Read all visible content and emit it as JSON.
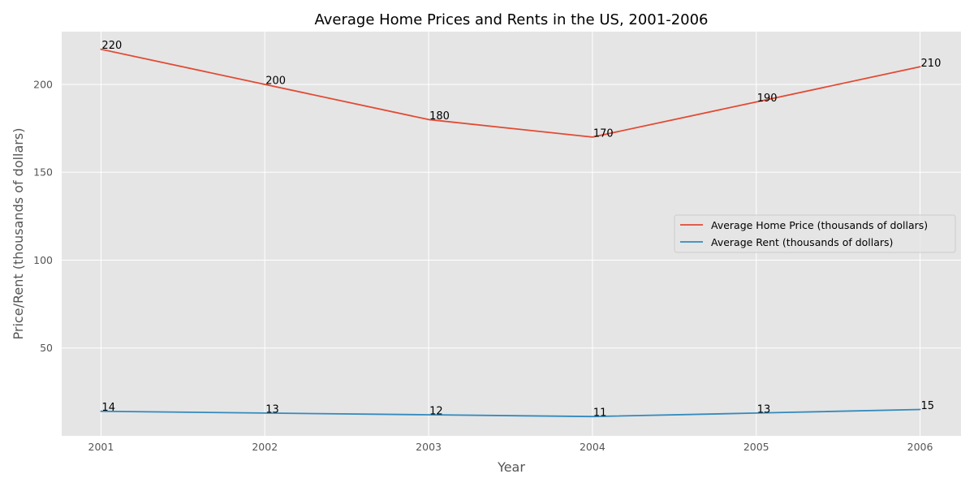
{
  "chart_data": {
    "type": "line",
    "title": "Average Home Prices and Rents in the US, 2001-2006",
    "xlabel": "Year",
    "ylabel": "Price/Rent (thousands of dollars)",
    "x": [
      2001,
      2002,
      2003,
      2004,
      2005,
      2006
    ],
    "xticks": [
      "2001",
      "2002",
      "2003",
      "2004",
      "2005",
      "2006"
    ],
    "yticks": [
      50,
      100,
      150,
      200
    ],
    "ylim": [
      0,
      230
    ],
    "xlim": [
      2000.76,
      2006.25
    ],
    "grid": true,
    "legend_position": "center-right",
    "series": [
      {
        "name": "Average Home Price (thousands of dollars)",
        "color": "#E24A33",
        "values": [
          220,
          200,
          180,
          170,
          190,
          210
        ]
      },
      {
        "name": "Average Rent (thousands of dollars)",
        "color": "#348ABD",
        "values": [
          14,
          13,
          12,
          11,
          13,
          15
        ]
      }
    ],
    "style": {
      "plot_background": "#E5E5E5",
      "grid_color": "#FFFFFF"
    }
  }
}
